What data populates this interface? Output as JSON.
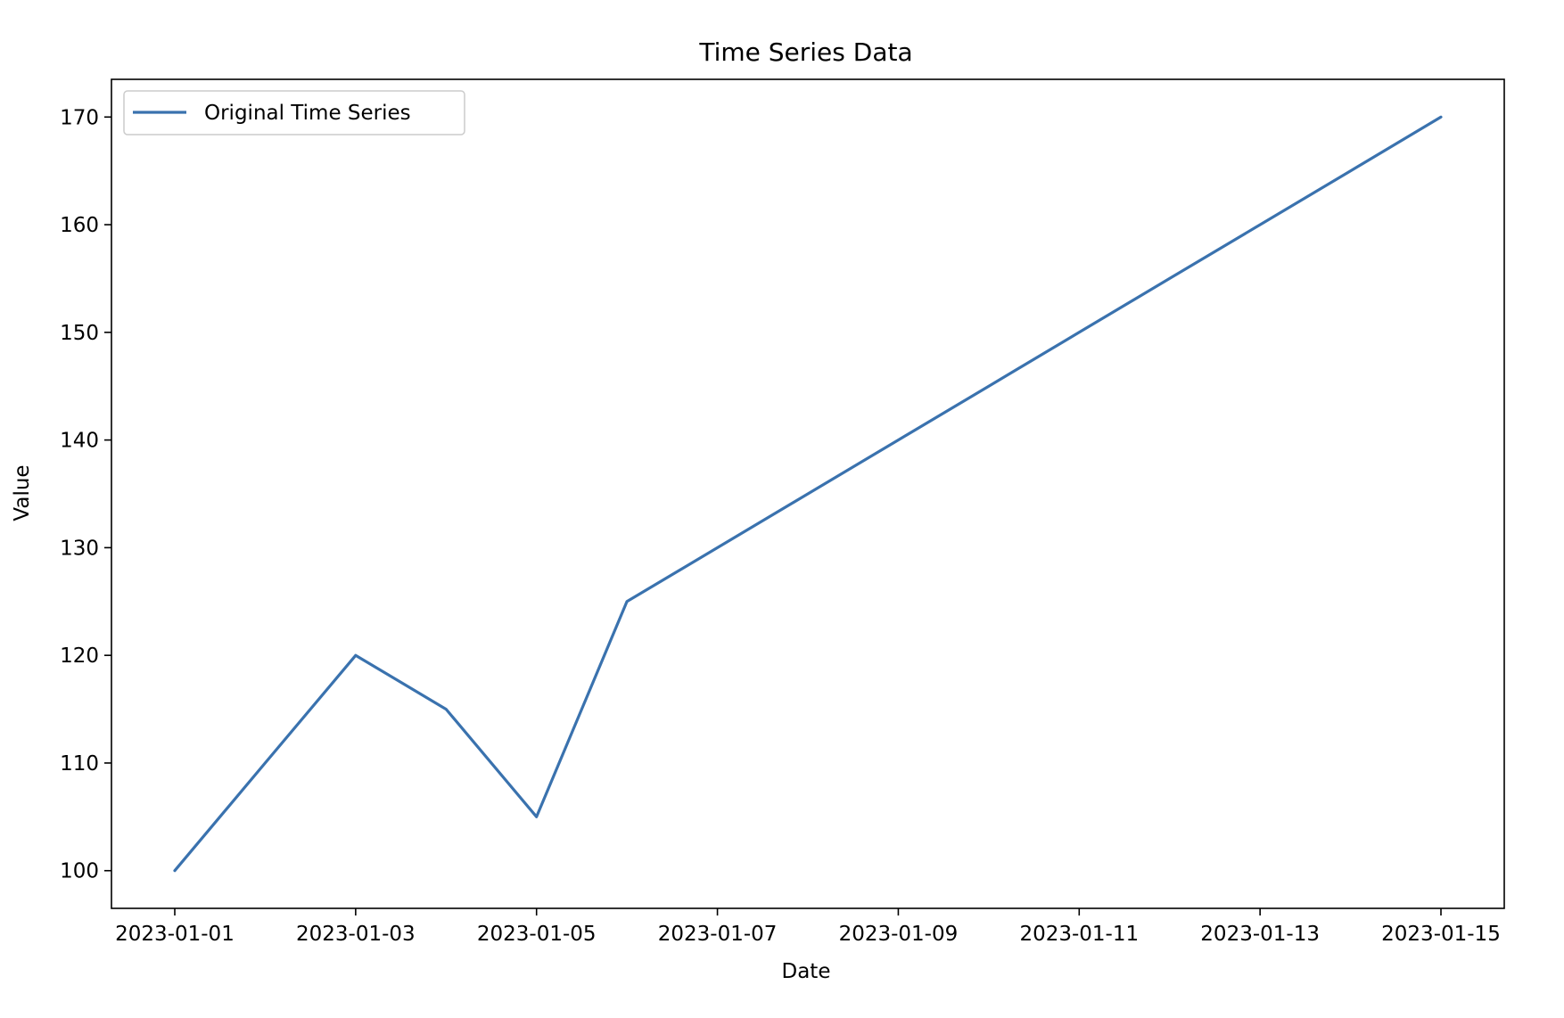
{
  "chart_data": {
    "type": "line",
    "title": "Time Series Data",
    "xlabel": "Date",
    "ylabel": "Value",
    "x": [
      "2023-01-01",
      "2023-01-02",
      "2023-01-03",
      "2023-01-04",
      "2023-01-05",
      "2023-01-06",
      "2023-01-07",
      "2023-01-08",
      "2023-01-09",
      "2023-01-10",
      "2023-01-11",
      "2023-01-12",
      "2023-01-13",
      "2023-01-14",
      "2023-01-15"
    ],
    "series": [
      {
        "name": "Original Time Series",
        "color": "#3a72ae",
        "values": [
          100,
          110,
          120,
          115,
          105,
          125,
          130,
          135,
          140,
          145,
          150,
          155,
          160,
          165,
          170
        ]
      }
    ],
    "xlim": [
      "2022-12-31T07:12",
      "2023-01-15T16:48"
    ],
    "ylim": [
      96.5,
      173.5
    ],
    "x_ticks": [
      "2023-01-01",
      "2023-01-03",
      "2023-01-05",
      "2023-01-07",
      "2023-01-09",
      "2023-01-11",
      "2023-01-13",
      "2023-01-15"
    ],
    "y_ticks": [
      100,
      110,
      120,
      130,
      140,
      150,
      160,
      170
    ],
    "grid": false,
    "legend": "top-left"
  }
}
